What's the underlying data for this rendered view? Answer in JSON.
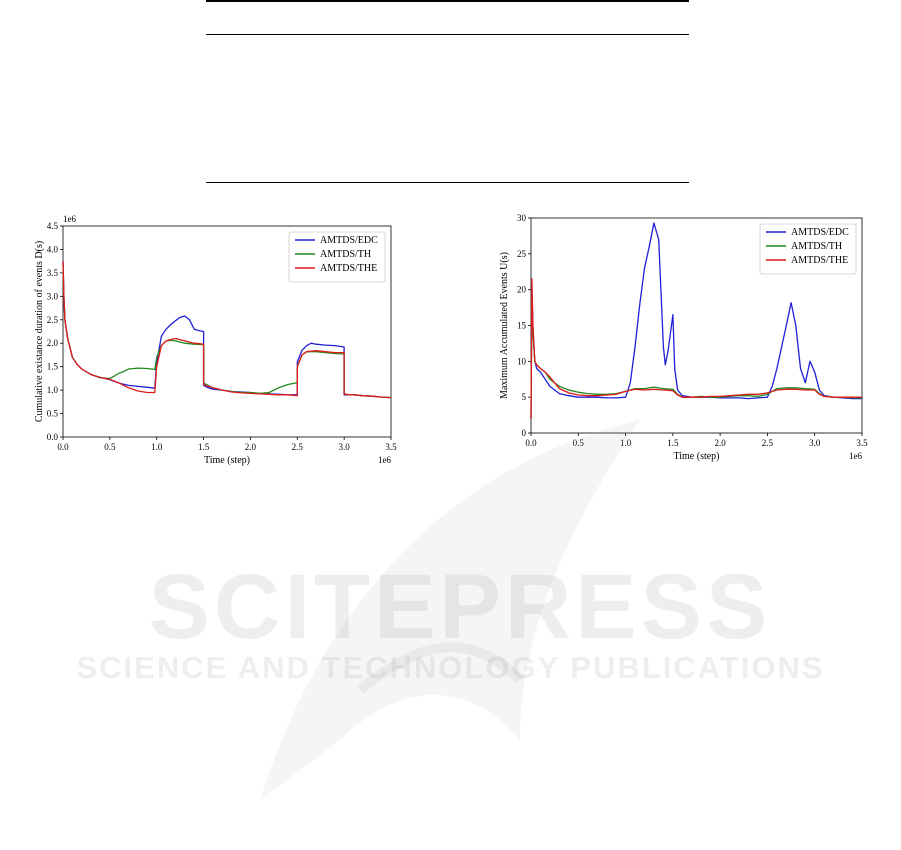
{
  "watermark": {
    "title": "SCITEPRESS",
    "subtitle": "SCIENCE AND TECHNOLOGY PUBLICATIONS"
  },
  "colors": {
    "blue": "#1f1fd6",
    "green": "#1e8a1e",
    "red": "#e01a1a"
  },
  "chart_data": [
    {
      "type": "line",
      "ylabel": "Cumulative existance duration of events D(s)",
      "xlabel": "Time (step)",
      "x_multiplier_label": "1e6",
      "y_multiplier_label": "1e6",
      "xlim": [
        0,
        3.5
      ],
      "ylim": [
        0,
        4.5
      ],
      "xticks": [
        "0.0",
        "0.5",
        "1.0",
        "1.5",
        "2.0",
        "2.5",
        "3.0",
        "3.5"
      ],
      "yticks": [
        "0.0",
        "0.5",
        "1.0",
        "1.5",
        "2.0",
        "2.5",
        "3.0",
        "3.5",
        "4.0",
        "4.5"
      ],
      "legend_position": "top-right",
      "grid": false,
      "series": [
        {
          "name": "AMTDS/EDC",
          "color": "#1f1fd6",
          "x": [
            0,
            0.01,
            0.02,
            0.05,
            0.1,
            0.15,
            0.2,
            0.3,
            0.4,
            0.5,
            0.6,
            0.7,
            0.8,
            0.9,
            0.98,
            1.0,
            1.05,
            1.1,
            1.15,
            1.2,
            1.25,
            1.3,
            1.35,
            1.4,
            1.45,
            1.5,
            1.5,
            1.55,
            1.6,
            1.7,
            1.8,
            1.9,
            2.0,
            2.1,
            2.2,
            2.3,
            2.4,
            2.5,
            2.5,
            2.55,
            2.6,
            2.65,
            2.7,
            2.8,
            2.9,
            3.0,
            3.0,
            3.05,
            3.1,
            3.2,
            3.3,
            3.4,
            3.5
          ],
          "y": [
            3.75,
            3.0,
            2.5,
            2.1,
            1.7,
            1.55,
            1.45,
            1.33,
            1.27,
            1.22,
            1.15,
            1.1,
            1.08,
            1.06,
            1.04,
            1.6,
            2.15,
            2.3,
            2.4,
            2.48,
            2.55,
            2.58,
            2.5,
            2.3,
            2.27,
            2.25,
            1.1,
            1.05,
            1.02,
            1.0,
            0.97,
            0.96,
            0.95,
            0.93,
            0.92,
            0.91,
            0.9,
            0.9,
            1.6,
            1.85,
            1.95,
            2.0,
            1.98,
            1.96,
            1.95,
            1.92,
            0.9,
            0.9,
            0.9,
            0.88,
            0.87,
            0.85,
            0.84
          ]
        },
        {
          "name": "AMTDS/TH",
          "color": "#1e8a1e",
          "x": [
            0,
            0.01,
            0.02,
            0.05,
            0.1,
            0.15,
            0.2,
            0.3,
            0.4,
            0.5,
            0.55,
            0.6,
            0.65,
            0.7,
            0.8,
            0.9,
            0.98,
            1.0,
            1.05,
            1.1,
            1.15,
            1.2,
            1.3,
            1.4,
            1.5,
            1.5,
            1.55,
            1.6,
            1.7,
            1.8,
            1.9,
            2.0,
            2.1,
            2.2,
            2.3,
            2.4,
            2.5,
            2.5,
            2.55,
            2.6,
            2.7,
            2.8,
            2.9,
            3.0,
            3.0,
            3.05,
            3.1,
            3.2,
            3.3,
            3.4,
            3.5
          ],
          "y": [
            3.7,
            3.0,
            2.5,
            2.1,
            1.7,
            1.55,
            1.45,
            1.33,
            1.26,
            1.25,
            1.3,
            1.36,
            1.4,
            1.45,
            1.47,
            1.46,
            1.44,
            1.7,
            1.95,
            2.05,
            2.06,
            2.05,
            2.0,
            1.98,
            1.97,
            1.15,
            1.1,
            1.05,
            1.0,
            0.97,
            0.95,
            0.95,
            0.93,
            0.95,
            1.05,
            1.12,
            1.16,
            1.5,
            1.75,
            1.82,
            1.82,
            1.8,
            1.78,
            1.77,
            0.92,
            0.9,
            0.9,
            0.88,
            0.87,
            0.85,
            0.84
          ]
        },
        {
          "name": "AMTDS/THE",
          "color": "#e01a1a",
          "x": [
            0,
            0.01,
            0.02,
            0.05,
            0.1,
            0.15,
            0.2,
            0.3,
            0.4,
            0.5,
            0.6,
            0.7,
            0.8,
            0.9,
            0.98,
            1.0,
            1.05,
            1.1,
            1.15,
            1.2,
            1.3,
            1.4,
            1.5,
            1.5,
            1.55,
            1.6,
            1.7,
            1.8,
            1.9,
            2.0,
            2.1,
            2.2,
            2.3,
            2.4,
            2.5,
            2.5,
            2.55,
            2.6,
            2.7,
            2.8,
            2.9,
            3.0,
            3.0,
            3.05,
            3.1,
            3.2,
            3.3,
            3.4,
            3.5
          ],
          "y": [
            3.75,
            3.0,
            2.5,
            2.1,
            1.7,
            1.55,
            1.45,
            1.33,
            1.27,
            1.23,
            1.15,
            1.05,
            0.98,
            0.95,
            0.95,
            1.5,
            1.95,
            2.05,
            2.08,
            2.1,
            2.05,
            2.0,
            1.98,
            1.12,
            1.08,
            1.05,
            1.0,
            0.96,
            0.94,
            0.93,
            0.92,
            0.91,
            0.9,
            0.9,
            0.88,
            1.5,
            1.75,
            1.82,
            1.84,
            1.82,
            1.8,
            1.8,
            0.92,
            0.9,
            0.9,
            0.88,
            0.87,
            0.85,
            0.84
          ]
        }
      ]
    },
    {
      "type": "line",
      "ylabel": "Maximum Accumulated Events U(s)",
      "xlabel": "Time (step)",
      "x_multiplier_label": "1e6",
      "xlim": [
        0,
        3.5
      ],
      "ylim": [
        0,
        30
      ],
      "xticks": [
        "0.0",
        "0.5",
        "1.0",
        "1.5",
        "2.0",
        "2.5",
        "3.0",
        "3.5"
      ],
      "yticks": [
        "0",
        "5",
        "10",
        "15",
        "20",
        "25",
        "30"
      ],
      "legend_position": "top-right",
      "grid": false,
      "series": [
        {
          "name": "AMTDS/EDC",
          "color": "#1f1fd6",
          "x": [
            0,
            0.01,
            0.02,
            0.04,
            0.06,
            0.1,
            0.15,
            0.2,
            0.25,
            0.3,
            0.4,
            0.5,
            0.6,
            0.7,
            0.8,
            0.9,
            1.0,
            1.05,
            1.1,
            1.15,
            1.2,
            1.25,
            1.3,
            1.35,
            1.4,
            1.42,
            1.45,
            1.5,
            1.52,
            1.55,
            1.6,
            1.7,
            1.8,
            1.9,
            2.0,
            2.1,
            2.2,
            2.3,
            2.4,
            2.5,
            2.55,
            2.6,
            2.65,
            2.7,
            2.75,
            2.8,
            2.85,
            2.9,
            2.95,
            3.0,
            3.05,
            3.1,
            3.2,
            3.3,
            3.4,
            3.5
          ],
          "y": [
            2,
            20,
            15,
            10,
            9,
            8.5,
            7.5,
            6.5,
            6,
            5.5,
            5.2,
            5,
            5,
            5,
            4.9,
            4.9,
            5,
            7,
            12,
            18,
            23,
            26,
            29.3,
            27,
            12,
            9.5,
            11.5,
            16.5,
            9,
            6,
            5.2,
            5,
            5,
            5,
            4.9,
            4.9,
            4.9,
            4.8,
            4.9,
            5,
            6.5,
            9,
            12,
            15,
            18.2,
            15,
            9,
            7,
            10,
            8.5,
            6,
            5.2,
            5,
            4.9,
            4.8,
            4.8
          ]
        },
        {
          "name": "AMTDS/TH",
          "color": "#1e8a1e",
          "x": [
            0,
            0.01,
            0.02,
            0.04,
            0.06,
            0.1,
            0.15,
            0.2,
            0.25,
            0.3,
            0.4,
            0.5,
            0.6,
            0.7,
            0.8,
            0.9,
            1.0,
            1.1,
            1.2,
            1.3,
            1.4,
            1.5,
            1.55,
            1.6,
            1.7,
            1.8,
            1.9,
            2.0,
            2.1,
            2.2,
            2.3,
            2.4,
            2.5,
            2.6,
            2.7,
            2.8,
            2.9,
            3.0,
            3.05,
            3.1,
            3.2,
            3.3,
            3.4,
            3.5
          ],
          "y": [
            2,
            19,
            14,
            10,
            9.5,
            9,
            8.5,
            7.5,
            7,
            6.5,
            6,
            5.7,
            5.5,
            5.4,
            5.4,
            5.5,
            5.8,
            6.2,
            6.2,
            6.4,
            6.2,
            6.1,
            5.4,
            5,
            5,
            5.1,
            5,
            5,
            5.1,
            5.2,
            5.2,
            5.1,
            5.4,
            6.2,
            6.3,
            6.3,
            6.2,
            6.1,
            5.5,
            5.1,
            5,
            5,
            4.9,
            4.9
          ]
        },
        {
          "name": "AMTDS/THE",
          "color": "#e01a1a",
          "x": [
            0,
            0.01,
            0.02,
            0.04,
            0.06,
            0.1,
            0.15,
            0.2,
            0.25,
            0.3,
            0.4,
            0.5,
            0.6,
            0.7,
            0.8,
            0.9,
            1.0,
            1.1,
            1.2,
            1.3,
            1.4,
            1.5,
            1.55,
            1.6,
            1.7,
            1.8,
            1.9,
            2.0,
            2.1,
            2.2,
            2.3,
            2.4,
            2.5,
            2.6,
            2.7,
            2.8,
            2.9,
            3.0,
            3.05,
            3.1,
            3.2,
            3.3,
            3.4,
            3.5
          ],
          "y": [
            2,
            21.5,
            15,
            10,
            9.5,
            9,
            8.5,
            7.8,
            7,
            6.2,
            5.6,
            5.3,
            5.2,
            5.2,
            5.3,
            5.4,
            5.8,
            6.1,
            6,
            6.1,
            6,
            5.9,
            5.3,
            5,
            5,
            5,
            5.1,
            5.1,
            5.2,
            5.3,
            5.4,
            5.4,
            5.6,
            6,
            6.1,
            6.1,
            6,
            6,
            5.4,
            5.1,
            5,
            5,
            5,
            5
          ]
        }
      ]
    }
  ]
}
